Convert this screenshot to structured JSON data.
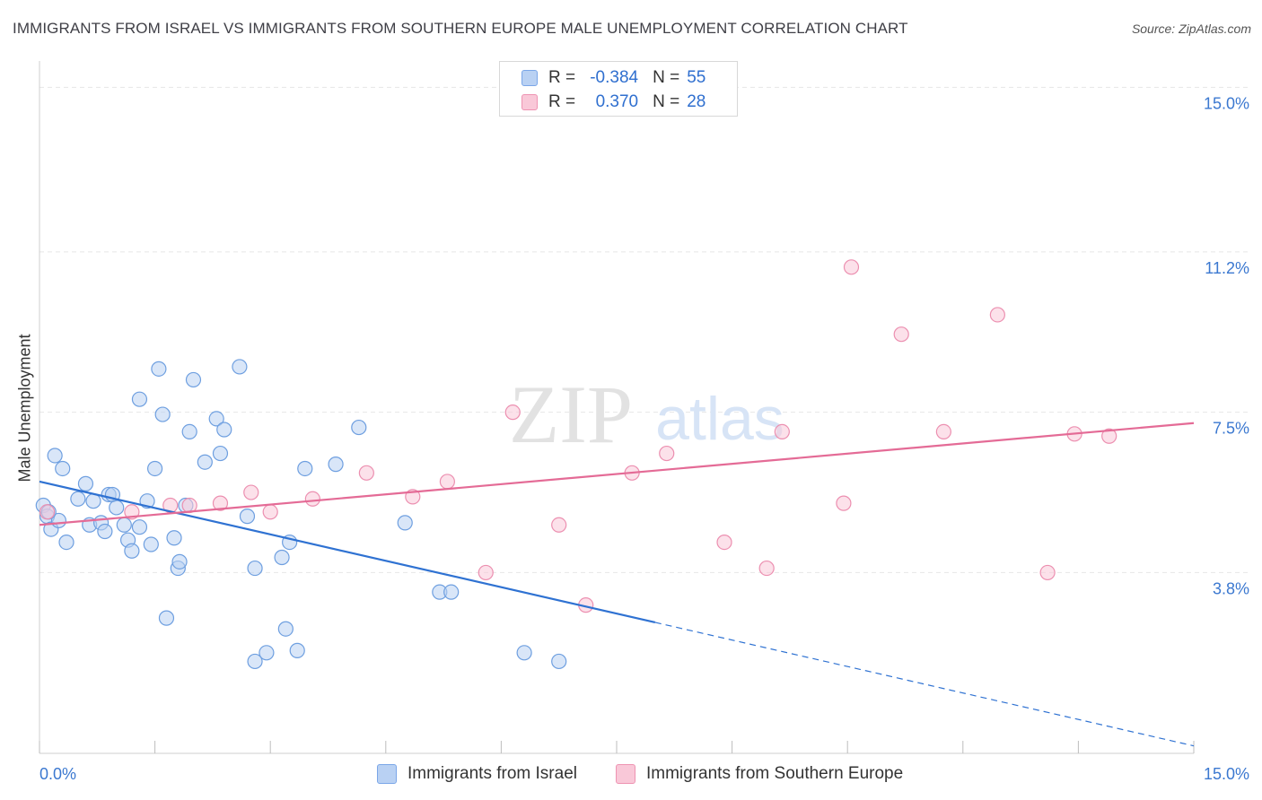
{
  "title": "IMMIGRANTS FROM ISRAEL VS IMMIGRANTS FROM SOUTHERN EUROPE MALE UNEMPLOYMENT CORRELATION CHART",
  "source": "Source: ZipAtlas.com",
  "watermark": {
    "zip": "ZIP",
    "atlas": "atlas"
  },
  "legend_top": {
    "rows": [
      {
        "r_label": "R =",
        "r_value": "-0.384",
        "n_label": "N =",
        "n_value": "55"
      },
      {
        "r_label": "R =",
        "r_value": "0.370",
        "n_label": "N =",
        "n_value": "28"
      }
    ]
  },
  "colors": {
    "blue_fill": "#b9d1f3",
    "blue_stroke": "#6e9fe0",
    "blue_line": "#2f72d2",
    "pink_fill": "#f9c8d8",
    "pink_stroke": "#ec8fb0",
    "pink_line": "#e46b96",
    "grid": "#e6e6e6",
    "tick_text": "#3b78d0"
  },
  "chart_data": {
    "type": "scatter",
    "title": "IMMIGRANTS FROM ISRAEL VS IMMIGRANTS FROM SOUTHERN EUROPE MALE UNEMPLOYMENT CORRELATION CHART",
    "xlabel": "",
    "ylabel": "Male Unemployment",
    "xlim": [
      0,
      15
    ],
    "ylim": [
      0,
      15.4
    ],
    "x_tick_labels": [
      "0.0%",
      "15.0%"
    ],
    "y_ticks": [
      3.8,
      7.5,
      11.2,
      15.0
    ],
    "y_tick_labels": [
      "3.8%",
      "7.5%",
      "11.2%",
      "15.0%"
    ],
    "grid": true,
    "legend_position": "bottom",
    "series": [
      {
        "name": "Immigrants from Israel",
        "color": "blue",
        "points": [
          [
            0.05,
            5.35
          ],
          [
            0.1,
            5.1
          ],
          [
            0.15,
            4.8
          ],
          [
            0.25,
            5.0
          ],
          [
            0.35,
            4.5
          ],
          [
            0.2,
            6.5
          ],
          [
            0.3,
            6.2
          ],
          [
            0.5,
            5.5
          ],
          [
            0.6,
            5.85
          ],
          [
            0.65,
            4.9
          ],
          [
            0.7,
            5.45
          ],
          [
            0.8,
            4.95
          ],
          [
            0.85,
            4.75
          ],
          [
            0.9,
            5.6
          ],
          [
            0.95,
            5.6
          ],
          [
            1.0,
            5.3
          ],
          [
            1.1,
            4.9
          ],
          [
            1.15,
            4.55
          ],
          [
            1.2,
            4.3
          ],
          [
            1.3,
            7.8
          ],
          [
            1.3,
            4.85
          ],
          [
            1.4,
            5.45
          ],
          [
            1.45,
            4.45
          ],
          [
            1.5,
            6.2
          ],
          [
            1.55,
            8.5
          ],
          [
            1.6,
            7.45
          ],
          [
            1.65,
            2.75
          ],
          [
            1.75,
            4.6
          ],
          [
            1.8,
            3.9
          ],
          [
            1.82,
            4.05
          ],
          [
            1.9,
            5.35
          ],
          [
            1.95,
            7.05
          ],
          [
            2.0,
            8.25
          ],
          [
            2.15,
            6.35
          ],
          [
            2.3,
            7.35
          ],
          [
            2.35,
            6.55
          ],
          [
            2.4,
            7.1
          ],
          [
            2.6,
            8.55
          ],
          [
            2.7,
            5.1
          ],
          [
            2.8,
            1.75
          ],
          [
            2.8,
            3.9
          ],
          [
            2.95,
            1.95
          ],
          [
            3.15,
            4.15
          ],
          [
            3.2,
            2.5
          ],
          [
            3.25,
            4.5
          ],
          [
            3.35,
            2.0
          ],
          [
            3.45,
            6.2
          ],
          [
            3.85,
            6.3
          ],
          [
            4.15,
            7.15
          ],
          [
            4.75,
            4.95
          ],
          [
            5.2,
            3.35
          ],
          [
            5.35,
            3.35
          ],
          [
            6.3,
            1.95
          ],
          [
            6.75,
            1.75
          ],
          [
            0.12,
            5.2
          ]
        ]
      },
      {
        "name": "Immigrants from Southern Europe",
        "color": "pink",
        "points": [
          [
            0.1,
            5.2
          ],
          [
            1.2,
            5.2
          ],
          [
            1.7,
            5.35
          ],
          [
            1.95,
            5.35
          ],
          [
            2.35,
            5.4
          ],
          [
            2.75,
            5.65
          ],
          [
            3.0,
            5.2
          ],
          [
            3.55,
            5.5
          ],
          [
            4.25,
            6.1
          ],
          [
            4.85,
            5.55
          ],
          [
            5.3,
            5.9
          ],
          [
            5.8,
            3.8
          ],
          [
            6.15,
            7.5
          ],
          [
            6.75,
            4.9
          ],
          [
            7.1,
            3.05
          ],
          [
            7.7,
            6.1
          ],
          [
            8.15,
            6.55
          ],
          [
            8.9,
            4.5
          ],
          [
            9.45,
            3.9
          ],
          [
            9.65,
            7.05
          ],
          [
            10.55,
            10.85
          ],
          [
            10.45,
            5.4
          ],
          [
            11.2,
            9.3
          ],
          [
            11.75,
            7.05
          ],
          [
            12.45,
            9.75
          ],
          [
            13.1,
            3.8
          ],
          [
            13.45,
            7.0
          ],
          [
            13.9,
            6.95
          ]
        ]
      }
    ],
    "trend_lines": [
      {
        "series": "Immigrants from Israel",
        "solid_from": [
          0,
          5.9
        ],
        "solid_to": [
          8.0,
          2.65
        ],
        "dashed_to": [
          15.0,
          -0.2
        ]
      },
      {
        "series": "Immigrants from Southern Europe",
        "from": [
          0,
          4.9
        ],
        "to": [
          15.0,
          7.25
        ]
      }
    ]
  }
}
